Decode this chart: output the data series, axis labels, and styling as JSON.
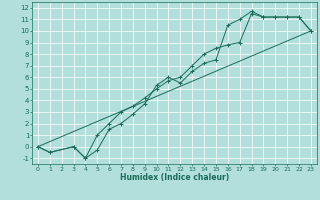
{
  "xlabel": "Humidex (Indice chaleur)",
  "bg_color": "#b2dfdb",
  "grid_color": "#ffffff",
  "line_color": "#1a6b5a",
  "xlim": [
    -0.5,
    23.5
  ],
  "ylim": [
    -1.5,
    12.5
  ],
  "xticks": [
    0,
    1,
    2,
    3,
    4,
    5,
    6,
    7,
    8,
    9,
    10,
    11,
    12,
    13,
    14,
    15,
    16,
    17,
    18,
    19,
    20,
    21,
    22,
    23
  ],
  "yticks": [
    -1,
    0,
    1,
    2,
    3,
    4,
    5,
    6,
    7,
    8,
    9,
    10,
    11,
    12
  ],
  "series1_x": [
    0,
    1,
    3,
    4,
    5,
    6,
    7,
    8,
    9,
    10,
    11,
    12,
    13,
    14,
    15,
    16,
    17,
    18,
    19,
    20,
    21,
    22,
    23
  ],
  "series1_y": [
    0,
    -0.5,
    0,
    -1,
    -0.3,
    1.5,
    2.0,
    2.8,
    3.7,
    5.3,
    6.0,
    5.5,
    6.5,
    7.2,
    7.5,
    10.5,
    11.0,
    11.7,
    11.2,
    11.2,
    11.2,
    11.2,
    10.0
  ],
  "series2_x": [
    0,
    1,
    3,
    4,
    5,
    6,
    7,
    8,
    9,
    10,
    11,
    12,
    13,
    14,
    15,
    16,
    17,
    18,
    19,
    20,
    21,
    22,
    23
  ],
  "series2_y": [
    0,
    -0.5,
    0,
    -1,
    1.0,
    2.0,
    3.0,
    3.5,
    4.2,
    5.0,
    5.7,
    6.0,
    7.0,
    8.0,
    8.5,
    8.8,
    9.0,
    11.5,
    11.2,
    11.2,
    11.2,
    11.2,
    10.0
  ],
  "series3_x": [
    0,
    23
  ],
  "series3_y": [
    0,
    10
  ]
}
